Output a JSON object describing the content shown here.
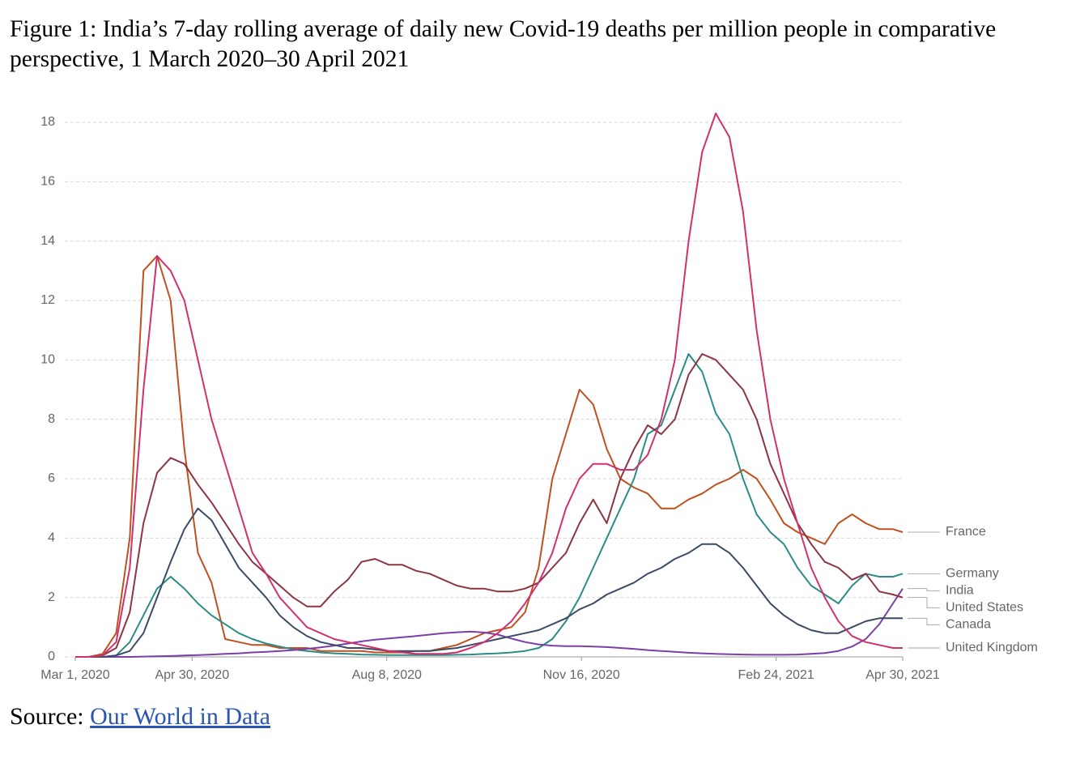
{
  "caption": "Figure 1: India’s 7-day rolling average of daily new Covid-19 deaths per million people in comparative perspective, 1 March 2020–30 April 2021",
  "source": {
    "label": "Source:",
    "link": "Our World in Data"
  },
  "chart_data": {
    "type": "line",
    "x": [
      "2020-03-01",
      "2020-03-08",
      "2020-03-15",
      "2020-03-22",
      "2020-03-29",
      "2020-04-05",
      "2020-04-12",
      "2020-04-19",
      "2020-04-26",
      "2020-05-03",
      "2020-05-10",
      "2020-05-17",
      "2020-05-24",
      "2020-05-31",
      "2020-06-07",
      "2020-06-14",
      "2020-06-21",
      "2020-06-28",
      "2020-07-05",
      "2020-07-12",
      "2020-07-19",
      "2020-07-26",
      "2020-08-02",
      "2020-08-09",
      "2020-08-16",
      "2020-08-23",
      "2020-08-30",
      "2020-09-06",
      "2020-09-13",
      "2020-09-20",
      "2020-09-27",
      "2020-10-04",
      "2020-10-11",
      "2020-10-18",
      "2020-10-25",
      "2020-11-01",
      "2020-11-08",
      "2020-11-15",
      "2020-11-22",
      "2020-11-29",
      "2020-12-06",
      "2020-12-13",
      "2020-12-20",
      "2020-12-27",
      "2021-01-03",
      "2021-01-10",
      "2021-01-17",
      "2021-01-24",
      "2021-01-31",
      "2021-02-07",
      "2021-02-14",
      "2021-02-21",
      "2021-02-28",
      "2021-03-07",
      "2021-03-14",
      "2021-03-21",
      "2021-03-28",
      "2021-04-04",
      "2021-04-11",
      "2021-04-18",
      "2021-04-25",
      "2021-04-30"
    ],
    "xlim": [
      "2020-03-01",
      "2021-04-30"
    ],
    "xticks": [
      {
        "value": "2020-03-01",
        "label": "Mar 1, 2020"
      },
      {
        "value": "2020-04-30",
        "label": "Apr 30, 2020"
      },
      {
        "value": "2020-08-08",
        "label": "Aug 8, 2020"
      },
      {
        "value": "2020-11-16",
        "label": "Nov 16, 2020"
      },
      {
        "value": "2021-02-24",
        "label": "Feb 24, 2021"
      },
      {
        "value": "2021-04-30",
        "label": "Apr 30, 2021"
      }
    ],
    "ylim": [
      0,
      18
    ],
    "yticks": [
      0,
      2,
      4,
      6,
      8,
      10,
      12,
      14,
      16,
      18
    ],
    "grid": true,
    "series": [
      {
        "name": "France",
        "color": "#c0501f",
        "values": [
          0,
          0,
          0.1,
          0.8,
          4,
          13,
          13.5,
          12,
          7,
          3.5,
          2.5,
          0.6,
          0.5,
          0.4,
          0.4,
          0.3,
          0.3,
          0.3,
          0.2,
          0.2,
          0.2,
          0.2,
          0.15,
          0.15,
          0.15,
          0.2,
          0.2,
          0.3,
          0.4,
          0.6,
          0.8,
          0.9,
          1.0,
          1.5,
          3,
          6,
          7.5,
          9,
          8.5,
          7,
          6,
          5.7,
          5.5,
          5,
          5,
          5.3,
          5.5,
          5.8,
          6,
          6.3,
          6,
          5.3,
          4.5,
          4.2,
          4,
          3.8,
          4.5,
          4.8,
          4.5,
          4.3,
          4.3,
          4.2
        ]
      },
      {
        "name": "Germany",
        "color": "#2b8c86",
        "values": [
          0,
          0,
          0,
          0.05,
          0.5,
          1.4,
          2.3,
          2.7,
          2.3,
          1.8,
          1.4,
          1.1,
          0.8,
          0.6,
          0.45,
          0.35,
          0.25,
          0.2,
          0.15,
          0.12,
          0.1,
          0.08,
          0.07,
          0.06,
          0.06,
          0.06,
          0.06,
          0.06,
          0.07,
          0.08,
          0.1,
          0.12,
          0.15,
          0.2,
          0.3,
          0.6,
          1.2,
          2,
          3,
          4,
          5,
          6,
          7.5,
          7.8,
          9,
          10.2,
          9.6,
          8.2,
          7.5,
          6,
          4.8,
          4.2,
          3.8,
          3,
          2.4,
          2.1,
          1.8,
          2.4,
          2.8,
          2.7,
          2.7,
          2.8
        ]
      },
      {
        "name": "India",
        "color": "#7a3fa8",
        "values": [
          0,
          0,
          0,
          0,
          0,
          0.01,
          0.02,
          0.03,
          0.05,
          0.06,
          0.08,
          0.1,
          0.12,
          0.15,
          0.17,
          0.2,
          0.23,
          0.27,
          0.32,
          0.38,
          0.45,
          0.52,
          0.58,
          0.62,
          0.66,
          0.7,
          0.75,
          0.8,
          0.83,
          0.85,
          0.82,
          0.75,
          0.62,
          0.5,
          0.42,
          0.38,
          0.36,
          0.36,
          0.35,
          0.33,
          0.3,
          0.27,
          0.23,
          0.2,
          0.17,
          0.14,
          0.12,
          0.1,
          0.09,
          0.08,
          0.07,
          0.07,
          0.07,
          0.08,
          0.1,
          0.13,
          0.2,
          0.35,
          0.6,
          1.1,
          1.8,
          2.3
        ]
      },
      {
        "name": "United States",
        "color": "#8c3540",
        "values": [
          0,
          0,
          0.05,
          0.3,
          1.5,
          4.5,
          6.2,
          6.7,
          6.5,
          5.8,
          5.2,
          4.5,
          3.8,
          3.2,
          2.8,
          2.4,
          2.0,
          1.7,
          1.7,
          2.2,
          2.6,
          3.2,
          3.3,
          3.1,
          3.1,
          2.9,
          2.8,
          2.6,
          2.4,
          2.3,
          2.3,
          2.2,
          2.2,
          2.3,
          2.5,
          3.0,
          3.5,
          4.5,
          5.3,
          4.5,
          6,
          7,
          7.8,
          7.5,
          8,
          9.5,
          10.2,
          10,
          9.5,
          9,
          8,
          6.5,
          5.5,
          4.5,
          3.8,
          3.2,
          3.0,
          2.6,
          2.8,
          2.2,
          2.1,
          2.0
        ]
      },
      {
        "name": "Canada",
        "color": "#3b4b66",
        "values": [
          0,
          0,
          0,
          0.05,
          0.2,
          0.8,
          2,
          3.2,
          4.3,
          5,
          4.6,
          3.8,
          3,
          2.5,
          2,
          1.4,
          1,
          0.7,
          0.5,
          0.4,
          0.3,
          0.3,
          0.25,
          0.2,
          0.2,
          0.2,
          0.2,
          0.25,
          0.3,
          0.4,
          0.5,
          0.6,
          0.7,
          0.8,
          0.9,
          1.1,
          1.3,
          1.6,
          1.8,
          2.1,
          2.3,
          2.5,
          2.8,
          3.0,
          3.3,
          3.5,
          3.8,
          3.8,
          3.5,
          3,
          2.4,
          1.8,
          1.4,
          1.1,
          0.9,
          0.8,
          0.8,
          1.0,
          1.2,
          1.3,
          1.3,
          1.3
        ]
      },
      {
        "name": "United Kingdom",
        "color": "#d1306f",
        "values": [
          0,
          0,
          0.05,
          0.5,
          3,
          9,
          13.5,
          13,
          12,
          10,
          8,
          6.5,
          5,
          3.5,
          2.8,
          2,
          1.5,
          1,
          0.8,
          0.6,
          0.5,
          0.4,
          0.3,
          0.2,
          0.15,
          0.1,
          0.1,
          0.1,
          0.15,
          0.3,
          0.5,
          0.8,
          1.2,
          1.8,
          2.5,
          3.5,
          5,
          6,
          6.5,
          6.5,
          6.3,
          6.3,
          6.8,
          8,
          10,
          14,
          17,
          18.3,
          17.5,
          15,
          11,
          8,
          6,
          4.5,
          3,
          2,
          1.2,
          0.7,
          0.5,
          0.4,
          0.3,
          0.3
        ]
      }
    ]
  }
}
